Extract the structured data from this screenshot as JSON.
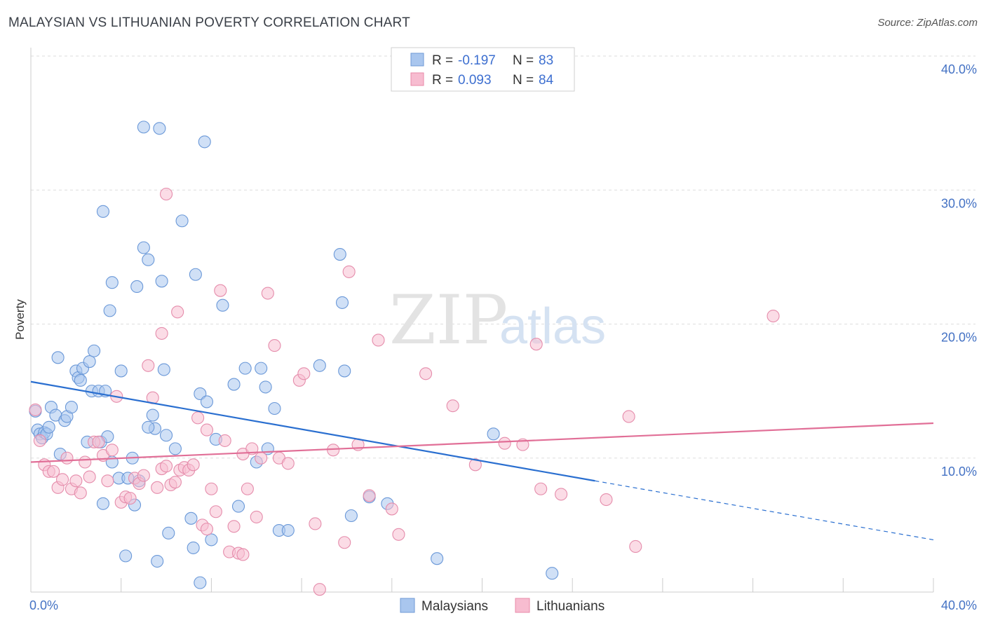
{
  "title": "MALAYSIAN VS LITHUANIAN POVERTY CORRELATION CHART",
  "source": "Source: ZipAtlas.com",
  "watermark": {
    "zip": "ZIP",
    "atlas": "atlas"
  },
  "legend": {
    "r_label": "R =",
    "n_label": "N =",
    "rows": [
      {
        "r": "-0.197",
        "n": "83",
        "color": "#a9c6ee",
        "stroke": "#6f9ad6"
      },
      {
        "r": "0.093",
        "n": "84",
        "color": "#f7bcd0",
        "stroke": "#e88aa9"
      }
    ]
  },
  "colors": {
    "blue_fill": "#a9c6ee",
    "blue_stroke": "#6a98d8",
    "blue_line": "#2a6fd0",
    "pink_fill": "#f7bfd2",
    "pink_stroke": "#e58cab",
    "pink_line": "#e16f97",
    "tick_text": "#4472c4",
    "grid": "#dddddd"
  },
  "chart_data": {
    "type": "scatter",
    "ylabel": "Poverty",
    "xlim": [
      0,
      40
    ],
    "ylim": [
      0,
      40
    ],
    "y_ticks": [
      {
        "value": 10,
        "label": "10.0%"
      },
      {
        "value": 20,
        "label": "20.0%"
      },
      {
        "value": 30,
        "label": "30.0%"
      },
      {
        "value": 40,
        "label": "40.0%"
      }
    ],
    "x_tick_labels": [
      {
        "value": 0,
        "label": "0.0%"
      },
      {
        "value": 40,
        "label": "40.0%"
      }
    ],
    "x_minor_ticks": [
      0,
      4,
      8,
      12,
      16,
      20,
      24,
      28,
      32,
      36,
      40
    ],
    "grid": true,
    "legend_position": "top-center",
    "series": [
      {
        "name": "Malaysians",
        "trend": {
          "x0": 0,
          "y0": 15.7,
          "x1": 25,
          "y1": 8.3,
          "dash_to_x": 40,
          "dash_to_y": 3.9
        },
        "points": [
          [
            0.2,
            13.5
          ],
          [
            0.3,
            12.1
          ],
          [
            0.4,
            11.8
          ],
          [
            0.5,
            11.5
          ],
          [
            0.6,
            11.9
          ],
          [
            0.7,
            11.8
          ],
          [
            0.8,
            12.3
          ],
          [
            0.9,
            13.8
          ],
          [
            1.1,
            13.2
          ],
          [
            1.2,
            17.5
          ],
          [
            1.3,
            10.3
          ],
          [
            1.5,
            12.8
          ],
          [
            1.6,
            13.1
          ],
          [
            1.8,
            13.8
          ],
          [
            2.0,
            16.5
          ],
          [
            2.1,
            16.0
          ],
          [
            2.2,
            15.8
          ],
          [
            2.3,
            16.7
          ],
          [
            2.5,
            11.2
          ],
          [
            2.6,
            17.2
          ],
          [
            2.7,
            15.0
          ],
          [
            2.8,
            18.0
          ],
          [
            3.0,
            15.0
          ],
          [
            3.1,
            11.2
          ],
          [
            3.3,
            15.0
          ],
          [
            3.4,
            11.6
          ],
          [
            3.2,
            6.6
          ],
          [
            3.6,
            9.7
          ],
          [
            3.9,
            8.5
          ],
          [
            4.0,
            16.5
          ],
          [
            4.3,
            8.5
          ],
          [
            4.5,
            10.0
          ],
          [
            4.6,
            6.5
          ],
          [
            4.7,
            22.8
          ],
          [
            4.8,
            8.3
          ],
          [
            5.0,
            25.7
          ],
          [
            5.2,
            24.8
          ],
          [
            5.5,
            12.2
          ],
          [
            5.6,
            2.3
          ],
          [
            5.8,
            23.2
          ],
          [
            5.9,
            16.6
          ],
          [
            6.0,
            11.7
          ],
          [
            6.1,
            4.4
          ],
          [
            6.4,
            10.7
          ],
          [
            6.7,
            27.7
          ],
          [
            7.1,
            5.5
          ],
          [
            7.3,
            23.7
          ],
          [
            7.5,
            14.8
          ],
          [
            7.8,
            14.2
          ],
          [
            8.0,
            3.9
          ],
          [
            8.2,
            11.4
          ],
          [
            8.5,
            21.4
          ],
          [
            9.0,
            15.5
          ],
          [
            9.2,
            6.4
          ],
          [
            9.5,
            16.7
          ],
          [
            10.0,
            9.7
          ],
          [
            10.2,
            16.7
          ],
          [
            10.4,
            15.3
          ],
          [
            10.8,
            13.7
          ],
          [
            11.0,
            4.6
          ],
          [
            11.4,
            4.6
          ],
          [
            12.8,
            16.9
          ],
          [
            13.7,
            25.2
          ],
          [
            13.8,
            21.6
          ],
          [
            13.9,
            16.5
          ],
          [
            14.2,
            5.7
          ],
          [
            15.0,
            7.1
          ],
          [
            15.8,
            6.6
          ],
          [
            18.0,
            2.5
          ],
          [
            20.5,
            11.8
          ],
          [
            23.1,
            1.4
          ],
          [
            10.5,
            10.7
          ],
          [
            5.0,
            34.7
          ],
          [
            5.7,
            34.6
          ],
          [
            7.7,
            33.6
          ],
          [
            3.2,
            28.4
          ],
          [
            3.5,
            21.0
          ],
          [
            3.6,
            23.1
          ],
          [
            5.2,
            12.3
          ],
          [
            5.4,
            13.2
          ],
          [
            7.5,
            0.7
          ],
          [
            4.2,
            2.7
          ],
          [
            7.2,
            3.3
          ]
        ]
      },
      {
        "name": "Lithuanians",
        "trend": {
          "x0": 0,
          "y0": 9.7,
          "x1": 40,
          "y1": 12.6
        },
        "points": [
          [
            0.2,
            13.6
          ],
          [
            0.4,
            11.3
          ],
          [
            0.6,
            9.5
          ],
          [
            0.8,
            9.0
          ],
          [
            1.0,
            9.0
          ],
          [
            1.2,
            7.8
          ],
          [
            1.4,
            8.4
          ],
          [
            1.6,
            10.0
          ],
          [
            1.8,
            7.7
          ],
          [
            2.0,
            8.3
          ],
          [
            2.2,
            7.4
          ],
          [
            2.4,
            9.7
          ],
          [
            2.6,
            8.6
          ],
          [
            2.8,
            11.2
          ],
          [
            3.0,
            11.2
          ],
          [
            3.2,
            10.2
          ],
          [
            3.4,
            8.3
          ],
          [
            3.6,
            10.6
          ],
          [
            3.8,
            14.6
          ],
          [
            4.0,
            6.7
          ],
          [
            4.2,
            7.1
          ],
          [
            4.4,
            7.0
          ],
          [
            4.6,
            8.5
          ],
          [
            4.8,
            8.1
          ],
          [
            5.0,
            8.7
          ],
          [
            5.2,
            16.9
          ],
          [
            5.4,
            14.5
          ],
          [
            5.6,
            7.8
          ],
          [
            5.8,
            9.2
          ],
          [
            6.0,
            9.4
          ],
          [
            6.2,
            8.0
          ],
          [
            6.4,
            8.2
          ],
          [
            6.6,
            9.1
          ],
          [
            6.8,
            9.3
          ],
          [
            7.0,
            9.1
          ],
          [
            7.2,
            9.5
          ],
          [
            7.4,
            13.0
          ],
          [
            7.6,
            5.0
          ],
          [
            7.8,
            4.7
          ],
          [
            8.0,
            7.7
          ],
          [
            8.2,
            6.0
          ],
          [
            8.4,
            22.5
          ],
          [
            8.6,
            11.3
          ],
          [
            8.8,
            3.0
          ],
          [
            9.0,
            4.9
          ],
          [
            9.2,
            2.9
          ],
          [
            9.4,
            10.3
          ],
          [
            9.6,
            7.7
          ],
          [
            9.8,
            10.7
          ],
          [
            10.0,
            5.6
          ],
          [
            10.2,
            10.0
          ],
          [
            10.5,
            22.3
          ],
          [
            10.8,
            18.4
          ],
          [
            11.0,
            10.0
          ],
          [
            11.4,
            9.6
          ],
          [
            11.9,
            15.8
          ],
          [
            12.1,
            16.3
          ],
          [
            12.6,
            5.1
          ],
          [
            12.8,
            0.2
          ],
          [
            13.4,
            10.6
          ],
          [
            13.9,
            3.7
          ],
          [
            14.1,
            23.9
          ],
          [
            14.5,
            11.0
          ],
          [
            15.0,
            7.2
          ],
          [
            15.4,
            18.8
          ],
          [
            16.0,
            6.2
          ],
          [
            16.3,
            4.3
          ],
          [
            17.5,
            16.3
          ],
          [
            18.7,
            13.9
          ],
          [
            19.7,
            9.5
          ],
          [
            21.0,
            11.1
          ],
          [
            21.8,
            11.0
          ],
          [
            22.4,
            18.5
          ],
          [
            22.6,
            7.7
          ],
          [
            23.5,
            7.3
          ],
          [
            25.5,
            6.9
          ],
          [
            26.5,
            13.1
          ],
          [
            26.8,
            3.4
          ],
          [
            32.9,
            20.6
          ],
          [
            6.0,
            29.7
          ],
          [
            5.8,
            19.3
          ],
          [
            6.5,
            20.9
          ],
          [
            7.8,
            12.1
          ],
          [
            9.4,
            2.8
          ]
        ]
      }
    ]
  }
}
